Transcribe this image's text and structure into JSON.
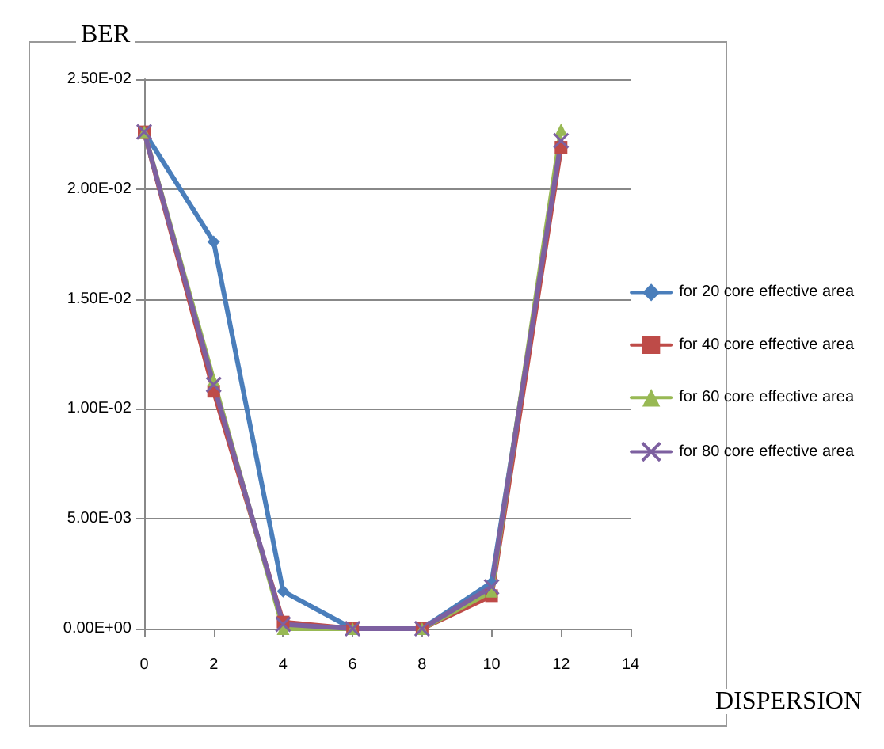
{
  "chart_data": {
    "type": "line",
    "xlabel": "DISPERSION",
    "ylabel": "BER",
    "x": [
      0,
      2,
      4,
      6,
      8,
      10,
      12
    ],
    "xlim": [
      0,
      14
    ],
    "xticks": [
      0,
      2,
      4,
      6,
      8,
      10,
      12,
      14
    ],
    "ylim": [
      0,
      0.025
    ],
    "yticks": [
      {
        "value": 0,
        "label": "0.00E+00"
      },
      {
        "value": 0.005,
        "label": "5.00E-03"
      },
      {
        "value": 0.01,
        "label": "1.00E-02"
      },
      {
        "value": 0.015,
        "label": "1.50E-02"
      },
      {
        "value": 0.02,
        "label": "2.00E-02"
      },
      {
        "value": 0.025,
        "label": "2.50E-02"
      }
    ],
    "grid": "y",
    "legend": "right",
    "line_style": "solid",
    "series": [
      {
        "name": "for 20 core effective area",
        "color": "#4a7ebb",
        "marker": "diamond",
        "values": [
          0.0226,
          0.0176,
          0.0017,
          0,
          0,
          0.0021,
          0.022
        ]
      },
      {
        "name": "for 40 core effective area",
        "color": "#be4b48",
        "marker": "square",
        "values": [
          0.0226,
          0.0108,
          0.0003,
          0,
          0,
          0.0015,
          0.0219
        ]
      },
      {
        "name": "for 60 core effective area",
        "color": "#98b954",
        "marker": "triangle",
        "values": [
          0.0226,
          0.0113,
          0,
          0,
          0,
          0.0017,
          0.0227
        ]
      },
      {
        "name": "for 80 core effective area",
        "color": "#7d60a0",
        "marker": "cross",
        "values": [
          0.0226,
          0.0111,
          0.0002,
          0,
          0,
          0.0019,
          0.0222
        ]
      }
    ]
  }
}
